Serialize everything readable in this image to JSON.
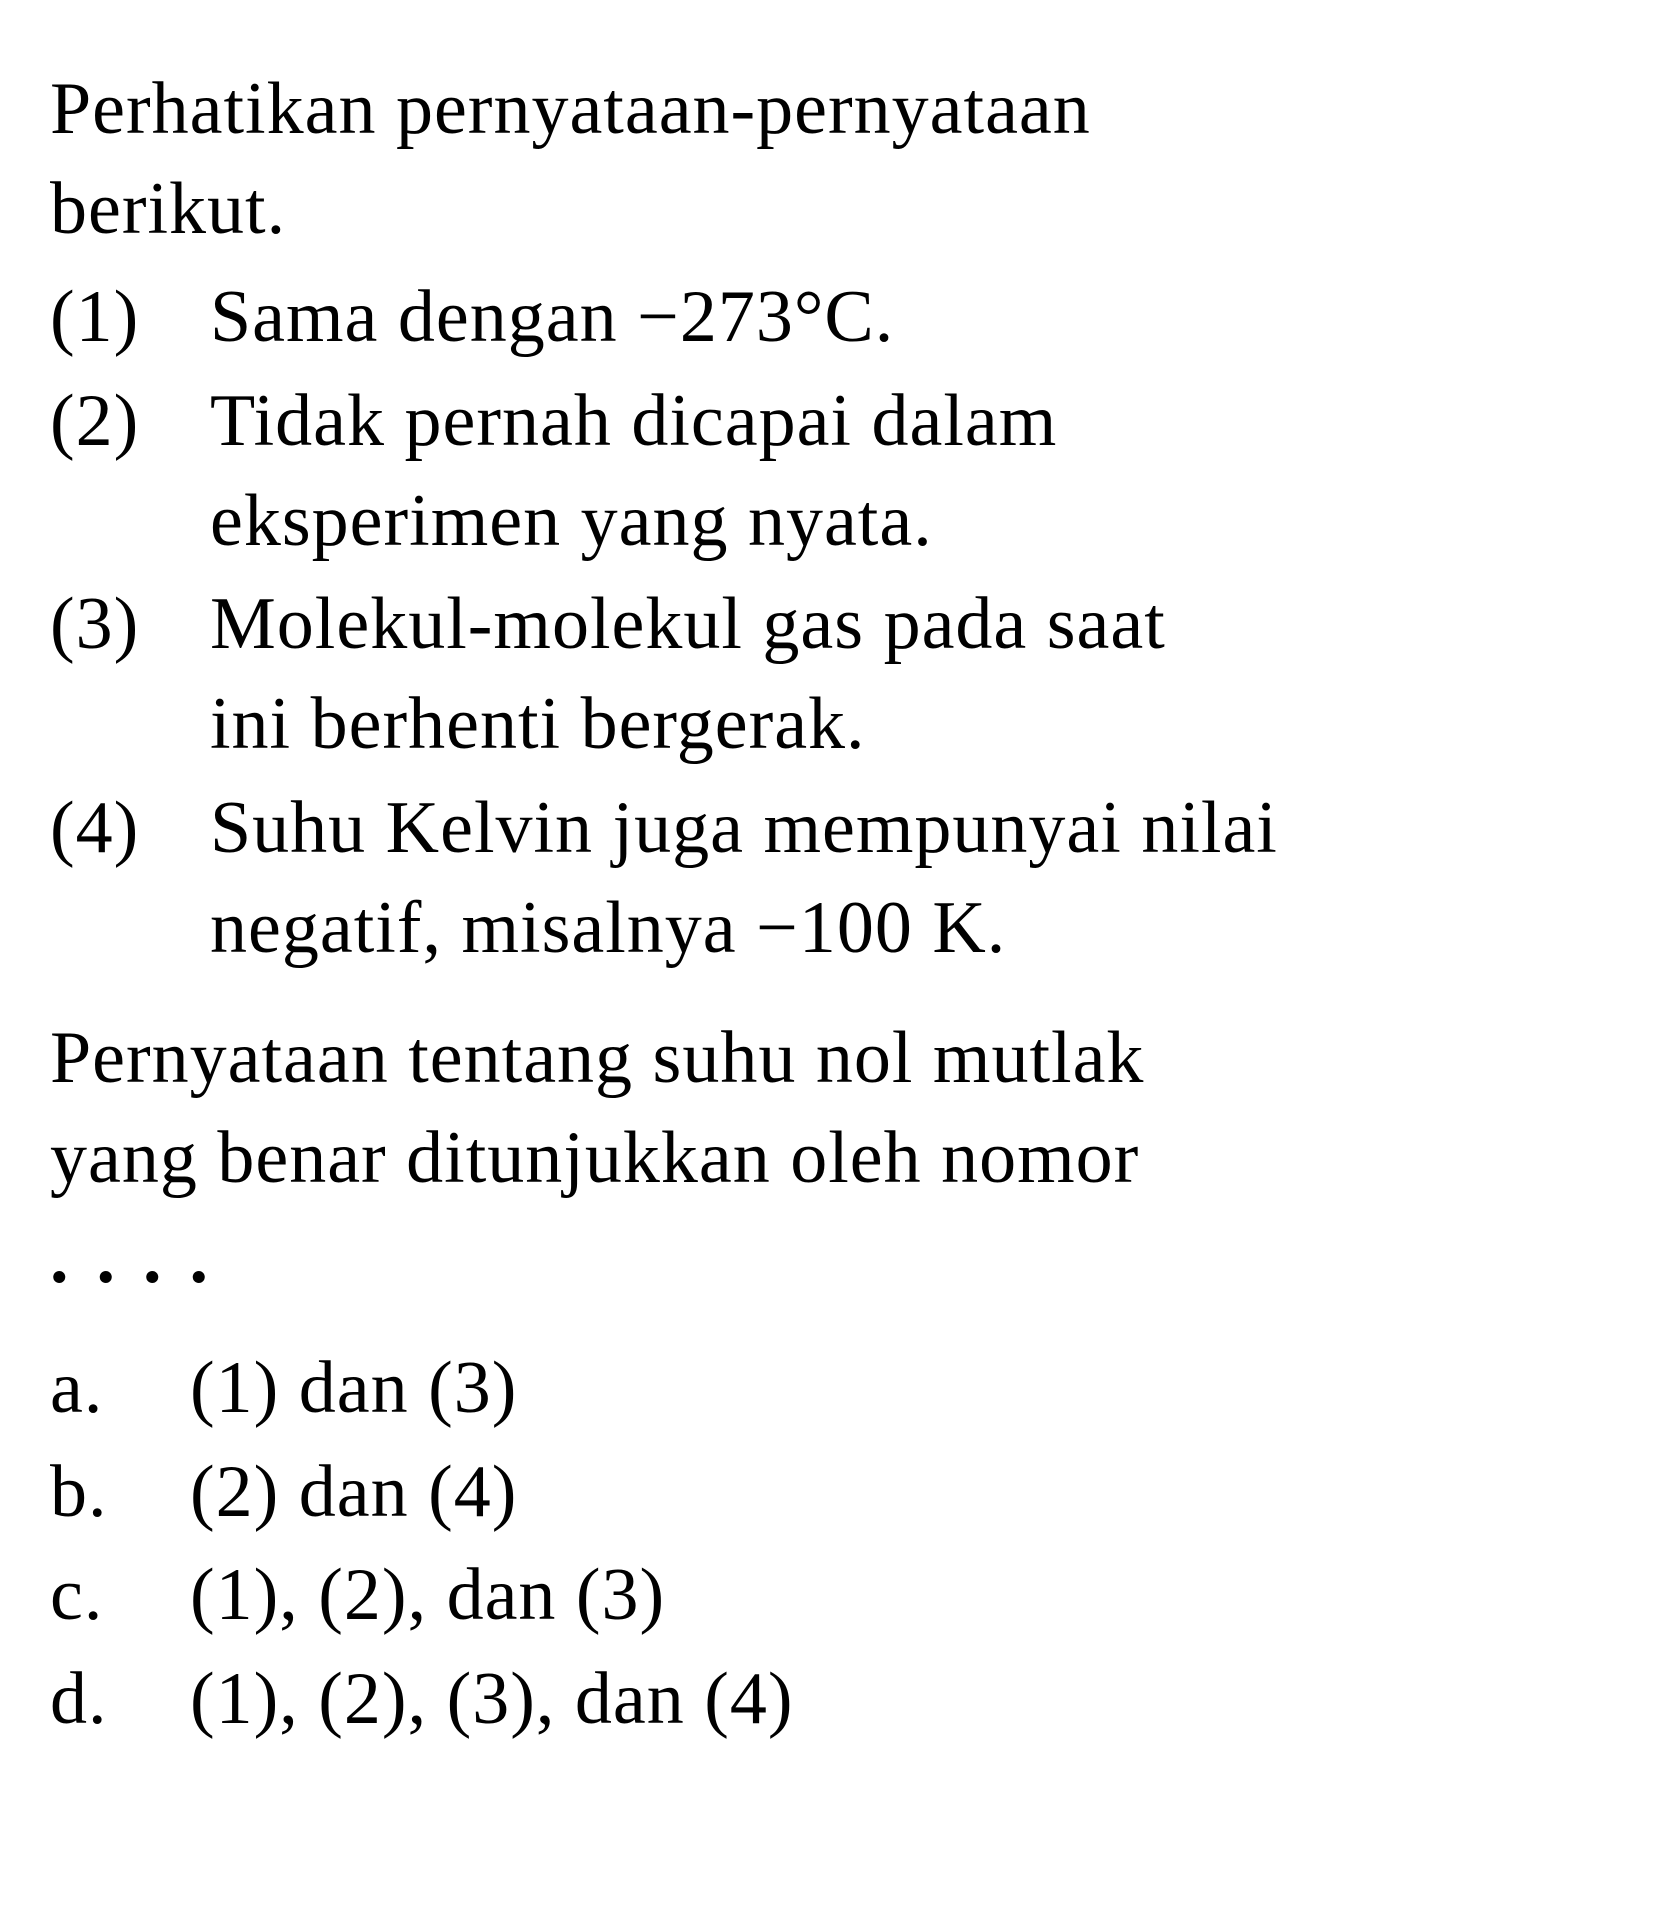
{
  "intro": {
    "line1": "Perhatikan pernyataan-pernyataan",
    "line2": "berikut."
  },
  "statements": [
    {
      "num": "(1)",
      "text": "Sama dengan −273°C."
    },
    {
      "num": "(2)",
      "line1": "Tidak pernah dicapai dalam",
      "line2": "eksperimen yang nyata."
    },
    {
      "num": "(3)",
      "line1": "Molekul-molekul gas pada saat",
      "line2": "ini berhenti bergerak."
    },
    {
      "num": "(4)",
      "line1": "Suhu Kelvin juga mempunyai nilai",
      "line2": "negatif, misalnya −100 K."
    }
  ],
  "question": {
    "line1": "Pernyataan tentang suhu nol mutlak",
    "line2": "yang benar ditunjukkan oleh nomor"
  },
  "dots": "....",
  "options": [
    {
      "letter": "a.",
      "text": "(1) dan (3)"
    },
    {
      "letter": "b.",
      "text": "(2) dan (4)"
    },
    {
      "letter": "c.",
      "text": "(1), (2), dan (3)"
    },
    {
      "letter": "d.",
      "text": "(1), (2), (3), dan (4)"
    }
  ],
  "colors": {
    "text": "#000000",
    "background": "#ffffff"
  },
  "typography": {
    "font_family": "Georgia, Times New Roman, serif",
    "font_size_pt": 56,
    "line_height": 1.35
  }
}
